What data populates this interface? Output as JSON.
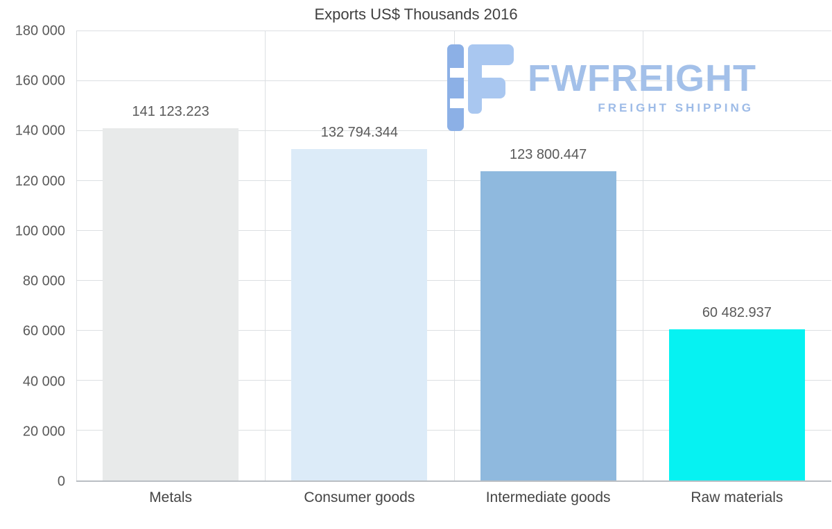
{
  "chart_data": {
    "type": "bar",
    "title": "Exports US$ Thousands 2016",
    "categories": [
      "Metals",
      "Consumer goods",
      "Intermediate goods",
      "Raw materials"
    ],
    "values": [
      141123.223,
      132794.344,
      123800.447,
      60482.937
    ],
    "value_labels": [
      "141 123.223",
      "132 794.344",
      "123 800.447",
      "60 482.937"
    ],
    "colors": [
      "#e8eaea",
      "#dcebf8",
      "#8fb9de",
      "#06f2f2"
    ],
    "xlabel": "",
    "ylabel": "",
    "ylim": [
      0,
      180000
    ],
    "yticks": [
      {
        "value": 0,
        "label": "0"
      },
      {
        "value": 20000,
        "label": "20 000"
      },
      {
        "value": 40000,
        "label": "40 000"
      },
      {
        "value": 60000,
        "label": "60 000"
      },
      {
        "value": 80000,
        "label": "80 000"
      },
      {
        "value": 100000,
        "label": "100 000"
      },
      {
        "value": 120000,
        "label": "120 000"
      },
      {
        "value": 140000,
        "label": "140 000"
      },
      {
        "value": 160000,
        "label": "160 000"
      },
      {
        "value": 180000,
        "label": "180 000"
      }
    ],
    "vgrid_fractions": [
      0,
      25,
      50,
      75
    ],
    "grid": true,
    "legend": false
  },
  "watermark": {
    "brand": "FWFREIGHT",
    "tagline": "FREIGHT SHIPPING",
    "color": "#a3c0e9",
    "icon": "fwfreight-logo-icon"
  }
}
